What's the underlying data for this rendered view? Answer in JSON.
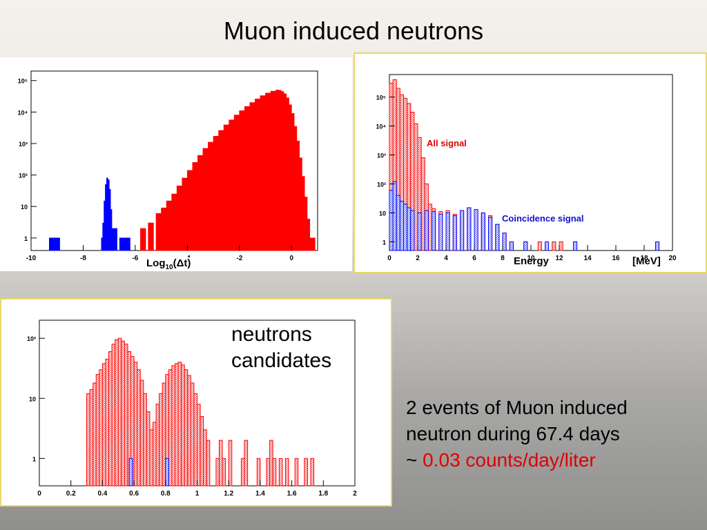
{
  "slide": {
    "title": "Muon induced neutrons",
    "candidates_label_line1": "neutrons",
    "candidates_label_line2": "candidates",
    "summary_line1": "2 events of Muon induced",
    "summary_line2": "neutron during 67.4 days",
    "summary_prefix": "~ ",
    "summary_highlight": "0.03 counts/day/liter"
  },
  "colors": {
    "fill_red": "#ff0000",
    "fill_blue": "#0000ff",
    "hatch_red": "#ee5555",
    "hatch_blue": "#5566ee",
    "highlight": "#e00000",
    "frame": "#e8d76a"
  },
  "chart_data": [
    {
      "type": "bar",
      "log_y": true,
      "xlabel_base": "Log",
      "xlabel_sub": "10",
      "xlabel_tail": "(Δt)",
      "xlim": [
        -10,
        1
      ],
      "ylim": [
        0.4,
        200000
      ],
      "xticks": [
        "-10",
        "-8",
        "-6",
        "-4",
        "-2",
        "0"
      ],
      "xtick_values": [
        -10,
        -8,
        -6,
        -4,
        -2,
        0
      ],
      "yticks": [
        "1",
        "10",
        "10²",
        "10³",
        "10⁴",
        "10⁵"
      ],
      "ytick_values": [
        1,
        10,
        100,
        1000,
        10000,
        100000
      ],
      "series": [
        {
          "color": "#ff0000",
          "bins": [
            [
              -5.8,
              2
            ],
            [
              -5.5,
              3
            ],
            [
              -5.2,
              6
            ],
            [
              -5.0,
              9
            ],
            [
              -4.8,
              15
            ],
            [
              -4.6,
              25
            ],
            [
              -4.4,
              45
            ],
            [
              -4.2,
              80
            ],
            [
              -4.0,
              140
            ],
            [
              -3.8,
              250
            ],
            [
              -3.6,
              420
            ],
            [
              -3.4,
              700
            ],
            [
              -3.2,
              1100
            ],
            [
              -3.0,
              1700
            ],
            [
              -2.8,
              2600
            ],
            [
              -2.6,
              3900
            ],
            [
              -2.4,
              5600
            ],
            [
              -2.2,
              8000
            ],
            [
              -2.0,
              11000
            ],
            [
              -1.8,
              15000
            ],
            [
              -1.6,
              20000
            ],
            [
              -1.4,
              26000
            ],
            [
              -1.2,
              33000
            ],
            [
              -1.0,
              40000
            ],
            [
              -0.8,
              46000
            ],
            [
              -0.6,
              50000
            ],
            [
              -0.5,
              49000
            ],
            [
              -0.4,
              45000
            ],
            [
              -0.3,
              38000
            ],
            [
              -0.2,
              28000
            ],
            [
              -0.1,
              17000
            ],
            [
              0.0,
              9000
            ],
            [
              0.1,
              3500
            ],
            [
              0.2,
              1200
            ],
            [
              0.3,
              350
            ],
            [
              0.4,
              90
            ],
            [
              0.5,
              20
            ],
            [
              0.6,
              4
            ],
            [
              0.7,
              1
            ]
          ]
        },
        {
          "color": "#0000ff",
          "bins": [
            [
              -9.3,
              1
            ],
            [
              -9.1,
              1
            ],
            [
              -7.3,
              1
            ],
            [
              -7.25,
              3
            ],
            [
              -7.2,
              15
            ],
            [
              -7.15,
              50
            ],
            [
              -7.1,
              80
            ],
            [
              -7.05,
              70
            ],
            [
              -7.0,
              35
            ],
            [
              -6.95,
              8
            ],
            [
              -6.9,
              2
            ],
            [
              -6.6,
              1
            ],
            [
              -6.4,
              1
            ]
          ]
        }
      ]
    },
    {
      "type": "bar",
      "log_y": true,
      "xlabel": "Energy",
      "xunit": "[MeV]",
      "xlim": [
        0,
        20
      ],
      "ylim": [
        0.5,
        600000
      ],
      "xticks": [
        "0",
        "2",
        "4",
        "6",
        "8",
        "10",
        "12",
        "14",
        "16",
        "18",
        "20"
      ],
      "xtick_values": [
        0,
        2,
        4,
        6,
        8,
        10,
        12,
        14,
        16,
        18,
        20
      ],
      "yticks": [
        "1",
        "10",
        "10²",
        "10³",
        "10⁴",
        "10⁵"
      ],
      "ytick_values": [
        1,
        10,
        100,
        1000,
        10000,
        100000
      ],
      "series": [
        {
          "name": "All signal",
          "color": "#ff0000",
          "bins": [
            [
              0.0,
              300000
            ],
            [
              0.25,
              400000
            ],
            [
              0.5,
              200000
            ],
            [
              0.75,
              120000
            ],
            [
              1.0,
              90000
            ],
            [
              1.25,
              60000
            ],
            [
              1.5,
              30000
            ],
            [
              1.75,
              12000
            ],
            [
              2.0,
              4000
            ],
            [
              2.25,
              800
            ],
            [
              2.5,
              100
            ],
            [
              2.75,
              20
            ],
            [
              3.0,
              14
            ],
            [
              3.5,
              11
            ],
            [
              4.0,
              12
            ],
            [
              4.5,
              9
            ],
            [
              5.0,
              12
            ],
            [
              5.5,
              15
            ],
            [
              6.0,
              12
            ],
            [
              6.5,
              10
            ],
            [
              7.0,
              8
            ],
            [
              7.5,
              4
            ],
            [
              8.0,
              2
            ],
            [
              8.5,
              1
            ],
            [
              9.5,
              1
            ],
            [
              10.5,
              1
            ],
            [
              11.5,
              1
            ],
            [
              12.0,
              1
            ]
          ]
        },
        {
          "name": "Coincidence signal",
          "color": "#0000ff",
          "bins": [
            [
              0.0,
              60
            ],
            [
              0.25,
              120
            ],
            [
              0.5,
              40
            ],
            [
              0.75,
              25
            ],
            [
              1.0,
              20
            ],
            [
              1.25,
              15
            ],
            [
              1.5,
              12
            ],
            [
              2.0,
              10
            ],
            [
              2.5,
              12
            ],
            [
              3.0,
              11
            ],
            [
              3.5,
              9
            ],
            [
              4.0,
              10
            ],
            [
              4.5,
              8
            ],
            [
              5.0,
              12
            ],
            [
              5.5,
              15
            ],
            [
              6.0,
              13
            ],
            [
              6.5,
              10
            ],
            [
              7.0,
              7
            ],
            [
              7.5,
              4
            ],
            [
              8.0,
              2
            ],
            [
              8.5,
              1
            ],
            [
              9.5,
              1
            ],
            [
              11.0,
              1
            ],
            [
              13.0,
              1
            ],
            [
              18.8,
              1
            ]
          ]
        }
      ]
    },
    {
      "type": "bar",
      "log_y": true,
      "xlim": [
        0,
        2
      ],
      "ylim": [
        0.35,
        200
      ],
      "xticks": [
        "0",
        "0.2",
        "0.4",
        "0.6",
        "0.8",
        "1",
        "1.2",
        "1.4",
        "1.6",
        "1.8",
        "2"
      ],
      "xtick_values": [
        0,
        0.2,
        0.4,
        0.6,
        0.8,
        1,
        1.2,
        1.4,
        1.6,
        1.8,
        2
      ],
      "yticks": [
        "1",
        "10",
        "10²"
      ],
      "ytick_values": [
        1,
        10,
        100
      ],
      "series": [
        {
          "color": "#ff0000",
          "bins": [
            [
              0.3,
              12
            ],
            [
              0.32,
              14
            ],
            [
              0.34,
              18
            ],
            [
              0.36,
              25
            ],
            [
              0.38,
              30
            ],
            [
              0.4,
              38
            ],
            [
              0.42,
              45
            ],
            [
              0.44,
              60
            ],
            [
              0.46,
              80
            ],
            [
              0.48,
              95
            ],
            [
              0.5,
              100
            ],
            [
              0.52,
              90
            ],
            [
              0.54,
              80
            ],
            [
              0.56,
              60
            ],
            [
              0.58,
              50
            ],
            [
              0.6,
              40
            ],
            [
              0.62,
              30
            ],
            [
              0.64,
              20
            ],
            [
              0.66,
              12
            ],
            [
              0.68,
              6
            ],
            [
              0.7,
              3
            ],
            [
              0.72,
              4
            ],
            [
              0.74,
              8
            ],
            [
              0.76,
              12
            ],
            [
              0.78,
              18
            ],
            [
              0.8,
              25
            ],
            [
              0.82,
              30
            ],
            [
              0.84,
              35
            ],
            [
              0.86,
              38
            ],
            [
              0.88,
              40
            ],
            [
              0.9,
              36
            ],
            [
              0.92,
              30
            ],
            [
              0.94,
              24
            ],
            [
              0.96,
              18
            ],
            [
              0.98,
              12
            ],
            [
              1.0,
              8
            ],
            [
              1.02,
              5
            ],
            [
              1.04,
              3
            ],
            [
              1.06,
              2
            ],
            [
              1.12,
              1
            ],
            [
              1.14,
              2
            ],
            [
              1.16,
              1
            ],
            [
              1.2,
              2
            ],
            [
              1.28,
              1
            ],
            [
              1.3,
              2
            ],
            [
              1.38,
              1
            ],
            [
              1.44,
              1
            ],
            [
              1.46,
              2
            ],
            [
              1.48,
              1
            ],
            [
              1.52,
              1
            ],
            [
              1.56,
              1
            ],
            [
              1.62,
              1
            ],
            [
              1.68,
              1
            ],
            [
              1.72,
              1
            ]
          ]
        },
        {
          "color": "#0000ff",
          "bins": [
            [
              0.57,
              1
            ],
            [
              0.8,
              1
            ]
          ]
        }
      ]
    }
  ]
}
